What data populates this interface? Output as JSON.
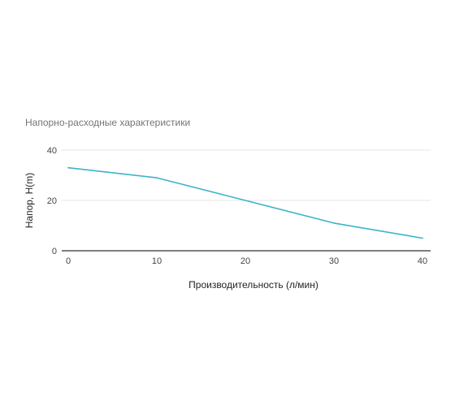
{
  "chart_data": {
    "type": "line",
    "title": "Напорно-расходные характеристики",
    "xlabel": "Производительность (л/мин)",
    "ylabel": "Напор, H(m)",
    "x": [
      0,
      10,
      20,
      30,
      40
    ],
    "series": [
      {
        "values": [
          33,
          29,
          20,
          11,
          5
        ]
      }
    ],
    "xlim": [
      0,
      40
    ],
    "ylim": [
      0,
      40
    ],
    "xticks": [
      "0",
      "10",
      "20",
      "30",
      "40"
    ],
    "yticks": [
      "0",
      "20",
      "40"
    ],
    "grid": true,
    "legend": "none",
    "colors": {
      "line": "#3cb4c8",
      "grid": "#e6e6e6",
      "baseline": "#333333"
    }
  }
}
